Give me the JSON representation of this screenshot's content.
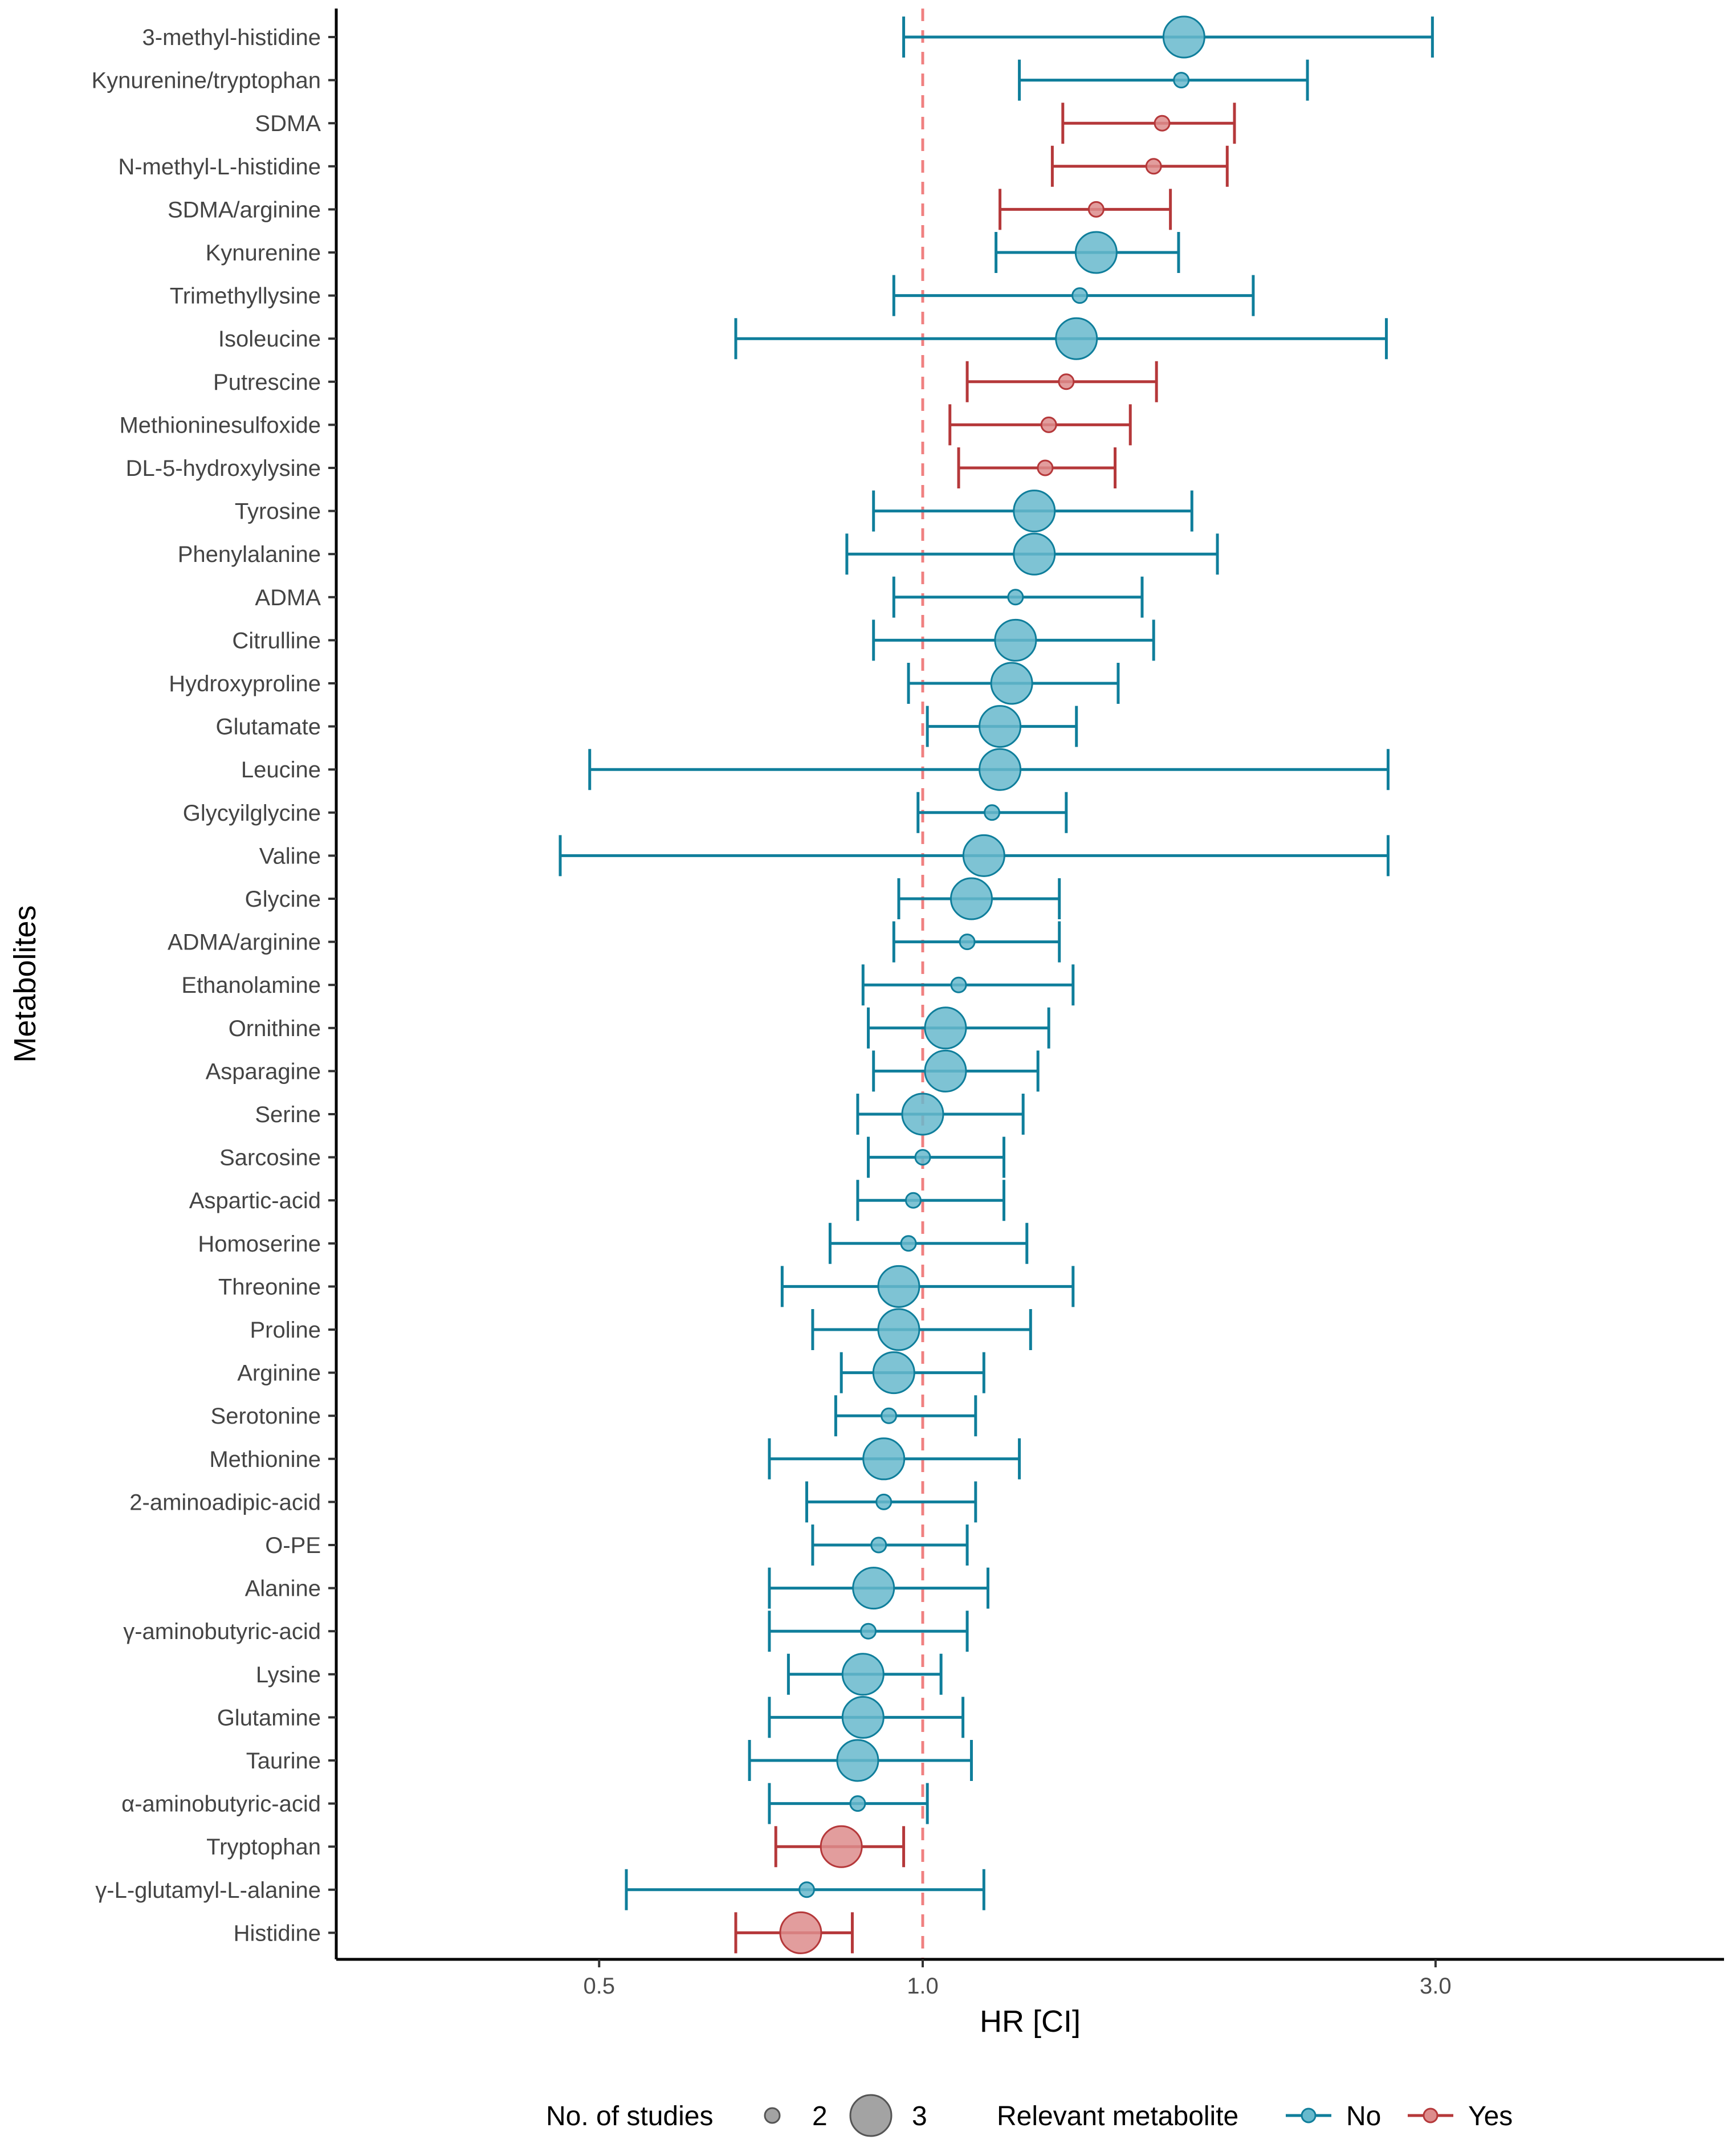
{
  "chart_data": {
    "type": "forest",
    "xlabel": "HR [CI]",
    "ylabel": "Metabolites",
    "x_scale": "log",
    "xlim": [
      0.4,
      3.2
    ],
    "x_ticks": [
      {
        "value": 0.5,
        "label": "0.5"
      },
      {
        "value": 1.0,
        "label": "1.0"
      },
      {
        "value": 3.0,
        "label": "3.0"
      }
    ],
    "reference_line": 1.0,
    "colors": {
      "No": "#0f7e9b",
      "Yes": "#b5383a",
      "No_fill": "#67b9cd",
      "Yes_fill": "#dd8c8c",
      "reference": "#f08080"
    },
    "legend": {
      "size_title": "No. of studies",
      "size_entries": [
        {
          "label": "2",
          "studies": 2
        },
        {
          "label": "3",
          "studies": 3
        }
      ],
      "color_title": "Relevant metabolite",
      "color_entries": [
        {
          "label": "No",
          "group": "No"
        },
        {
          "label": "Yes",
          "group": "Yes"
        }
      ],
      "position": "bottom"
    },
    "rows": [
      {
        "name": "3-methyl-histidine",
        "hr": 1.75,
        "lower": 0.96,
        "upper": 2.98,
        "studies": 3,
        "relevant": "No"
      },
      {
        "name": "Kynurenine/tryptophan",
        "hr": 1.74,
        "lower": 1.23,
        "upper": 2.28,
        "studies": 2,
        "relevant": "No"
      },
      {
        "name": "SDMA",
        "hr": 1.67,
        "lower": 1.35,
        "upper": 1.95,
        "studies": 2,
        "relevant": "Yes"
      },
      {
        "name": "N-methyl-L-histidine",
        "hr": 1.64,
        "lower": 1.32,
        "upper": 1.92,
        "studies": 2,
        "relevant": "Yes"
      },
      {
        "name": "SDMA/arginine",
        "hr": 1.45,
        "lower": 1.18,
        "upper": 1.7,
        "studies": 2,
        "relevant": "Yes"
      },
      {
        "name": "Kynurenine",
        "hr": 1.45,
        "lower": 1.17,
        "upper": 1.73,
        "studies": 3,
        "relevant": "No"
      },
      {
        "name": "Trimethyllysine",
        "hr": 1.4,
        "lower": 0.94,
        "upper": 2.03,
        "studies": 2,
        "relevant": "No"
      },
      {
        "name": "Isoleucine",
        "hr": 1.39,
        "lower": 0.67,
        "upper": 2.7,
        "studies": 3,
        "relevant": "No"
      },
      {
        "name": "Putrescine",
        "hr": 1.36,
        "lower": 1.1,
        "upper": 1.65,
        "studies": 2,
        "relevant": "Yes"
      },
      {
        "name": "Methioninesulfoxide",
        "hr": 1.31,
        "lower": 1.06,
        "upper": 1.56,
        "studies": 2,
        "relevant": "Yes"
      },
      {
        "name": "DL-5-hydroxylysine",
        "hr": 1.3,
        "lower": 1.08,
        "upper": 1.51,
        "studies": 2,
        "relevant": "Yes"
      },
      {
        "name": "Tyrosine",
        "hr": 1.27,
        "lower": 0.9,
        "upper": 1.78,
        "studies": 3,
        "relevant": "No"
      },
      {
        "name": "Phenylalanine",
        "hr": 1.27,
        "lower": 0.85,
        "upper": 1.88,
        "studies": 3,
        "relevant": "No"
      },
      {
        "name": "ADMA",
        "hr": 1.22,
        "lower": 0.94,
        "upper": 1.6,
        "studies": 2,
        "relevant": "No"
      },
      {
        "name": "Citrulline",
        "hr": 1.22,
        "lower": 0.9,
        "upper": 1.64,
        "studies": 3,
        "relevant": "No"
      },
      {
        "name": "Hydroxyproline",
        "hr": 1.21,
        "lower": 0.97,
        "upper": 1.52,
        "studies": 3,
        "relevant": "No"
      },
      {
        "name": "Glutamate",
        "hr": 1.18,
        "lower": 1.01,
        "upper": 1.39,
        "studies": 3,
        "relevant": "No"
      },
      {
        "name": "Leucine",
        "hr": 1.18,
        "lower": 0.49,
        "upper": 2.71,
        "studies": 3,
        "relevant": "No"
      },
      {
        "name": "Glycyilglycine",
        "hr": 1.16,
        "lower": 0.99,
        "upper": 1.36,
        "studies": 2,
        "relevant": "No"
      },
      {
        "name": "Valine",
        "hr": 1.14,
        "lower": 0.46,
        "upper": 2.71,
        "studies": 3,
        "relevant": "No"
      },
      {
        "name": "Glycine",
        "hr": 1.11,
        "lower": 0.95,
        "upper": 1.34,
        "studies": 3,
        "relevant": "No"
      },
      {
        "name": "ADMA/arginine",
        "hr": 1.1,
        "lower": 0.94,
        "upper": 1.34,
        "studies": 2,
        "relevant": "No"
      },
      {
        "name": "Ethanolamine",
        "hr": 1.08,
        "lower": 0.88,
        "upper": 1.38,
        "studies": 2,
        "relevant": "No"
      },
      {
        "name": "Ornithine",
        "hr": 1.05,
        "lower": 0.89,
        "upper": 1.31,
        "studies": 3,
        "relevant": "No"
      },
      {
        "name": "Asparagine",
        "hr": 1.05,
        "lower": 0.9,
        "upper": 1.28,
        "studies": 3,
        "relevant": "No"
      },
      {
        "name": "Serine",
        "hr": 1.0,
        "lower": 0.87,
        "upper": 1.24,
        "studies": 3,
        "relevant": "No"
      },
      {
        "name": "Sarcosine",
        "hr": 1.0,
        "lower": 0.89,
        "upper": 1.19,
        "studies": 2,
        "relevant": "No"
      },
      {
        "name": "Aspartic-acid",
        "hr": 0.98,
        "lower": 0.87,
        "upper": 1.19,
        "studies": 2,
        "relevant": "No"
      },
      {
        "name": "Homoserine",
        "hr": 0.97,
        "lower": 0.82,
        "upper": 1.25,
        "studies": 2,
        "relevant": "No"
      },
      {
        "name": "Threonine",
        "hr": 0.95,
        "lower": 0.74,
        "upper": 1.38,
        "studies": 3,
        "relevant": "No"
      },
      {
        "name": "Proline",
        "hr": 0.95,
        "lower": 0.79,
        "upper": 1.26,
        "studies": 3,
        "relevant": "No"
      },
      {
        "name": "Arginine",
        "hr": 0.94,
        "lower": 0.84,
        "upper": 1.14,
        "studies": 3,
        "relevant": "No"
      },
      {
        "name": "Serotonine",
        "hr": 0.93,
        "lower": 0.83,
        "upper": 1.12,
        "studies": 2,
        "relevant": "No"
      },
      {
        "name": "Methionine",
        "hr": 0.92,
        "lower": 0.72,
        "upper": 1.23,
        "studies": 3,
        "relevant": "No"
      },
      {
        "name": "2-aminoadipic-acid",
        "hr": 0.92,
        "lower": 0.78,
        "upper": 1.12,
        "studies": 2,
        "relevant": "No"
      },
      {
        "name": "O-PE",
        "hr": 0.91,
        "lower": 0.79,
        "upper": 1.1,
        "studies": 2,
        "relevant": "No"
      },
      {
        "name": "Alanine",
        "hr": 0.9,
        "lower": 0.72,
        "upper": 1.15,
        "studies": 3,
        "relevant": "No"
      },
      {
        "name": "γ-aminobutyric-acid",
        "hr": 0.89,
        "lower": 0.72,
        "upper": 1.1,
        "studies": 2,
        "relevant": "No"
      },
      {
        "name": "Lysine",
        "hr": 0.88,
        "lower": 0.75,
        "upper": 1.04,
        "studies": 3,
        "relevant": "No"
      },
      {
        "name": "Glutamine",
        "hr": 0.88,
        "lower": 0.72,
        "upper": 1.09,
        "studies": 3,
        "relevant": "No"
      },
      {
        "name": "Taurine",
        "hr": 0.87,
        "lower": 0.69,
        "upper": 1.11,
        "studies": 3,
        "relevant": "No"
      },
      {
        "name": "α-aminobutyric-acid",
        "hr": 0.87,
        "lower": 0.72,
        "upper": 1.01,
        "studies": 2,
        "relevant": "No"
      },
      {
        "name": "Tryptophan",
        "hr": 0.84,
        "lower": 0.73,
        "upper": 0.96,
        "studies": 3,
        "relevant": "Yes"
      },
      {
        "name": "γ-L-glutamyl-L-alanine",
        "hr": 0.78,
        "lower": 0.53,
        "upper": 1.14,
        "studies": 2,
        "relevant": "No"
      },
      {
        "name": "Histidine",
        "hr": 0.77,
        "lower": 0.67,
        "upper": 0.86,
        "studies": 3,
        "relevant": "Yes"
      }
    ]
  }
}
